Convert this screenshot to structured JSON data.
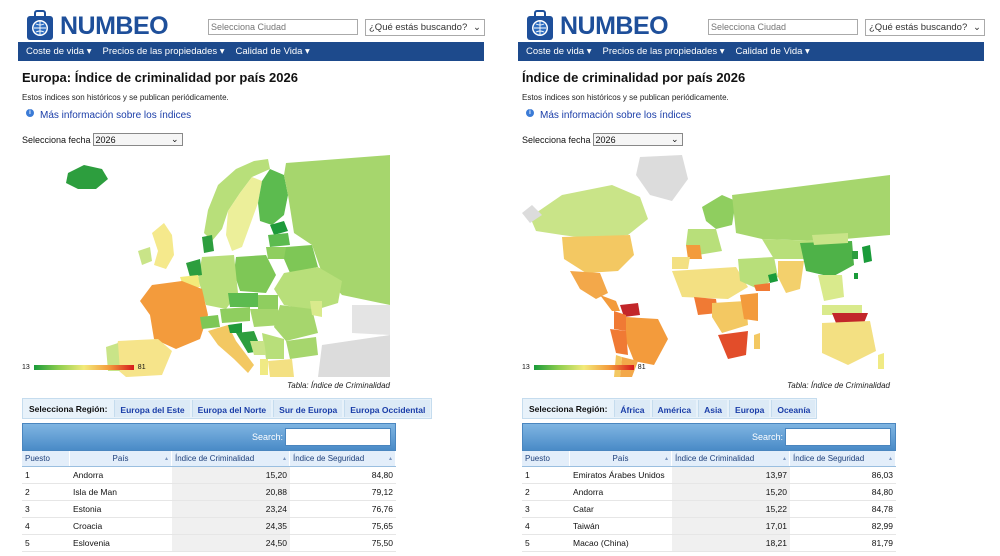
{
  "left": {
    "brand": "NUMBEO",
    "city_placeholder": "Selecciona Ciudad",
    "search_select": "¿Qué estás buscando?",
    "nav": [
      "Coste de vida ▾",
      "Precios de las propiedades ▾",
      "Calidad de Vida ▾"
    ],
    "title": "Europa: Índice de criminalidad por país 2026",
    "subtitle": "Estos índices son históricos y se publican periódicamente.",
    "info_link": "Más información sobre los índices",
    "date_label": "Selecciona fecha",
    "date_value": "2026",
    "legend_min": "13",
    "legend_max": "81",
    "caption": "Tabla: Índice de Criminalidad",
    "region_title": "Selecciona Región:",
    "regions": [
      "Europa del Este",
      "Europa del Norte",
      "Sur de Europa",
      "Europa Occidental"
    ],
    "search_label": "Search:",
    "columns": [
      "Puesto",
      "País",
      "Índice de Criminalidad",
      "Índice de Seguridad"
    ],
    "rows": [
      {
        "rank": "1",
        "country": "Andorra",
        "crime": "15,20",
        "safety": "84,80"
      },
      {
        "rank": "2",
        "country": "Isla de Man",
        "crime": "20,88",
        "safety": "79,12"
      },
      {
        "rank": "3",
        "country": "Estonia",
        "crime": "23,24",
        "safety": "76,76"
      },
      {
        "rank": "4",
        "country": "Croacia",
        "crime": "24,35",
        "safety": "75,65"
      },
      {
        "rank": "5",
        "country": "Eslovenia",
        "crime": "24,50",
        "safety": "75,50"
      }
    ]
  },
  "right": {
    "brand": "NUMBEO",
    "city_placeholder": "Selecciona Ciudad",
    "search_select": "¿Qué estás buscando?",
    "nav": [
      "Coste de vida ▾",
      "Precios de las propiedades ▾",
      "Calidad de Vida ▾"
    ],
    "title": "Índice de criminalidad por país 2026",
    "subtitle": "Estos índices son históricos y se publican periódicamente.",
    "info_link": "Más información sobre los índices",
    "date_label": "Selecciona fecha",
    "date_value": "2026",
    "legend_min": "13",
    "legend_max": "81",
    "caption": "Tabla: Índice de Criminalidad",
    "region_title": "Selecciona Región:",
    "regions": [
      "África",
      "América",
      "Asia",
      "Europa",
      "Oceanía"
    ],
    "search_label": "Search:",
    "columns": [
      "Puesto",
      "País",
      "Índice de Criminalidad",
      "Índice de Seguridad"
    ],
    "rows": [
      {
        "rank": "1",
        "country": "Emiratos Árabes Unidos",
        "crime": "13,97",
        "safety": "86,03"
      },
      {
        "rank": "2",
        "country": "Andorra",
        "crime": "15,20",
        "safety": "84,80"
      },
      {
        "rank": "3",
        "country": "Catar",
        "crime": "15,22",
        "safety": "84,78"
      },
      {
        "rank": "4",
        "country": "Taiwán",
        "crime": "17,01",
        "safety": "82,99"
      },
      {
        "rank": "5",
        "country": "Macao (China)",
        "crime": "18,21",
        "safety": "81,79"
      }
    ]
  }
}
